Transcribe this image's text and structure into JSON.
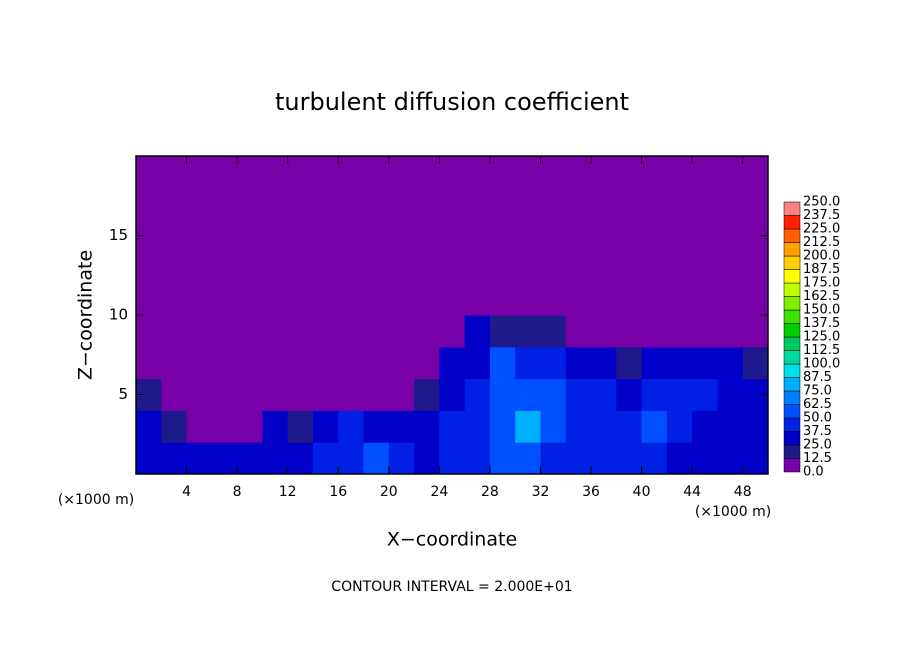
{
  "chart_data": {
    "type": "contour",
    "title": "turbulent diffusion coefficient",
    "xlabel": "X−coordinate",
    "ylabel": "Z−coordinate",
    "xunit": "(×1000 m)",
    "yunit": "(×1000 m)",
    "footnote": "CONTOUR INTERVAL = 2.000E+01",
    "xlim": [
      0,
      50
    ],
    "ylim": [
      0,
      20
    ],
    "xticks": [
      4,
      8,
      12,
      16,
      20,
      24,
      28,
      32,
      36,
      40,
      44,
      48
    ],
    "yticks": [
      5,
      10,
      15
    ],
    "field": {
      "x": [
        1,
        3,
        5,
        7,
        9,
        11,
        13,
        15,
        17,
        19,
        21,
        23,
        25,
        27,
        29,
        31,
        33,
        35,
        37,
        39,
        41,
        43,
        45,
        47,
        49
      ],
      "z": [
        1,
        3,
        5,
        7,
        9,
        11,
        13,
        15,
        17,
        19
      ],
      "values": [
        [
          30,
          30,
          25,
          30,
          35,
          35,
          35,
          40,
          45,
          55,
          40,
          35,
          40,
          45,
          50,
          60,
          45,
          40,
          40,
          40,
          45,
          35,
          30,
          30,
          25
        ],
        [
          25,
          20,
          10,
          5,
          10,
          25,
          20,
          35,
          40,
          30,
          25,
          25,
          40,
          45,
          50,
          80,
          50,
          40,
          45,
          40,
          55,
          45,
          35,
          30,
          35
        ],
        [
          15,
          10,
          5,
          5,
          5,
          5,
          5,
          5,
          5,
          5,
          5,
          15,
          35,
          40,
          50,
          60,
          55,
          45,
          40,
          35,
          45,
          40,
          40,
          35,
          30
        ],
        [
          5,
          5,
          5,
          5,
          5,
          5,
          5,
          5,
          5,
          5,
          5,
          5,
          30,
          35,
          50,
          45,
          40,
          35,
          30,
          15,
          30,
          35,
          35,
          30,
          15
        ],
        [
          5,
          5,
          5,
          5,
          5,
          5,
          5,
          5,
          5,
          5,
          5,
          5,
          5,
          25,
          15,
          20,
          15,
          5,
          5,
          5,
          5,
          5,
          5,
          5,
          5
        ],
        [
          5,
          5,
          5,
          5,
          5,
          5,
          5,
          5,
          5,
          5,
          5,
          5,
          5,
          5,
          5,
          5,
          5,
          5,
          5,
          5,
          5,
          5,
          5,
          5,
          5
        ],
        [
          5,
          5,
          5,
          5,
          5,
          5,
          5,
          5,
          5,
          5,
          5,
          5,
          5,
          5,
          5,
          5,
          5,
          5,
          5,
          5,
          5,
          5,
          5,
          5,
          5
        ],
        [
          5,
          5,
          5,
          5,
          5,
          5,
          5,
          5,
          5,
          5,
          5,
          5,
          5,
          5,
          5,
          5,
          5,
          5,
          5,
          5,
          5,
          5,
          5,
          5,
          5
        ],
        [
          5,
          5,
          5,
          5,
          5,
          5,
          5,
          5,
          5,
          5,
          5,
          5,
          5,
          5,
          5,
          5,
          5,
          5,
          5,
          5,
          5,
          5,
          5,
          5,
          5
        ],
        [
          5,
          5,
          5,
          5,
          5,
          5,
          5,
          5,
          5,
          5,
          5,
          5,
          5,
          5,
          5,
          5,
          5,
          5,
          5,
          5,
          5,
          5,
          5,
          5,
          5
        ]
      ]
    },
    "colorbar": {
      "levels": [
        {
          "value": 0,
          "label": "0.0"
        },
        {
          "value": 12.5,
          "label": "12.5"
        },
        {
          "value": 25,
          "label": "25.0"
        },
        {
          "value": 37.5,
          "label": "37.5"
        },
        {
          "value": 50,
          "label": "50.0"
        },
        {
          "value": 62.5,
          "label": "62.5"
        },
        {
          "value": 75,
          "label": "75.0"
        },
        {
          "value": 87.5,
          "label": "87.5"
        },
        {
          "value": 100,
          "label": "100.0"
        },
        {
          "value": 112.5,
          "label": "112.5"
        },
        {
          "value": 125,
          "label": "125.0"
        },
        {
          "value": 137.5,
          "label": "137.5"
        },
        {
          "value": 150,
          "label": "150.0"
        },
        {
          "value": 162.5,
          "label": "162.5"
        },
        {
          "value": 175,
          "label": "175.0"
        },
        {
          "value": 187.5,
          "label": "187.5"
        },
        {
          "value": 200,
          "label": "200.0"
        },
        {
          "value": 212.5,
          "label": "212.5"
        },
        {
          "value": 225,
          "label": "225.0"
        },
        {
          "value": 237.5,
          "label": "237.5"
        },
        {
          "value": 250,
          "label": "250.0"
        }
      ],
      "colors": [
        "#7800a8",
        "#1e1a8c",
        "#0000c8",
        "#0020e6",
        "#0050ff",
        "#0080ff",
        "#00b0ff",
        "#00e0e8",
        "#00d8a0",
        "#00c860",
        "#00d000",
        "#40e000",
        "#80f000",
        "#c0ff00",
        "#ffff00",
        "#ffd000",
        "#ffa000",
        "#ff6000",
        "#ff2000",
        "#ff8080"
      ]
    }
  }
}
